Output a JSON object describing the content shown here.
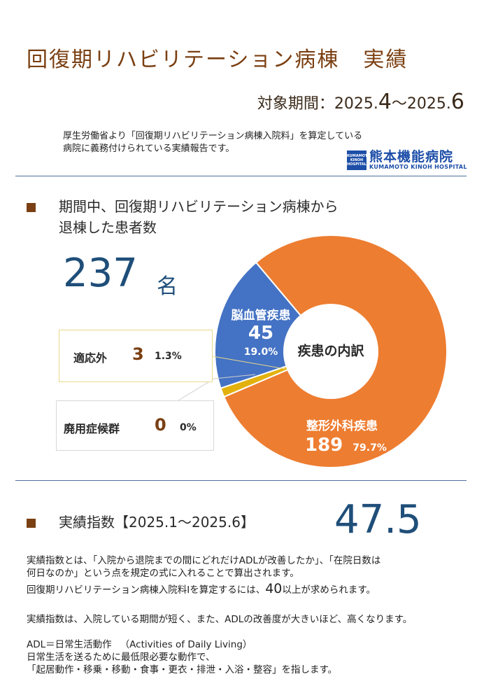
{
  "header": {
    "title_main": "回復期リハビリテーション病棟",
    "title_suffix": "実績",
    "period_label": "対象期間：",
    "period_start_year": "2025.",
    "period_start_month": "4",
    "period_sep": "～",
    "period_end_year": "2025.",
    "period_end_month": "6",
    "intro_line1": "厚生労働省より「回復期リハビリテーション病棟入院料」を算定している",
    "intro_line2": "病院に義務付けられている実績報告です。"
  },
  "logo": {
    "mark_line1": "KUMAMOTO",
    "mark_line2": "KINOH",
    "mark_line3": "HOSPITAL",
    "name_jp": "熊本機能病院",
    "name_en": "KUMAMOTO KINOH HOSPITAL",
    "color": "#1d4ea8"
  },
  "section1": {
    "heading_line1": "期間中、回復期リハビリテーション病棟から",
    "heading_line2": "退棟した患者数",
    "total": "237",
    "unit": "名"
  },
  "chart_data": {
    "type": "pie",
    "center_label": "疾患の内訳",
    "slices": [
      {
        "name": "整形外科疾患",
        "value": 189,
        "percent": "79.7%",
        "color": "#ed7d31"
      },
      {
        "name": "脳血管疾患",
        "value": 45,
        "percent": "19.0%",
        "color": "#4472c4"
      },
      {
        "name": "適応外",
        "value": 3,
        "percent": "1.3%",
        "color": "#e3b10e"
      },
      {
        "name": "廃用症候群",
        "value": 0,
        "percent": "0%",
        "color": "#a5a5a5"
      }
    ]
  },
  "section2": {
    "heading": "実績指数【2025.1～2025.6】",
    "index_value": "47.5",
    "para1_line1": "実績指数とは、「入院から退院までの間にどれだけADLが改善したか」、「在院日数は",
    "para1_line2": "何日なのか」という点を規定の式に入れることで算出されます。",
    "para2_pre": "回復期リハビリテーション病棟入院料Ⅰを算定するには、",
    "para2_num": "40",
    "para2_post": "以上が求められます。",
    "para3": "実績指数は、入院している期間が短く、また、ADLの改善度が大きいほど、高くなります。",
    "adl_term": "ADL＝日常生活動作",
    "adl_en": "（Activities of Daily Living）",
    "adl_line2": "日常生活を送るために最低限必要な動作で、",
    "adl_line3": "「起居動作・移乗・移動・食事・更衣・排泄・入浴・整容」を指します。"
  }
}
